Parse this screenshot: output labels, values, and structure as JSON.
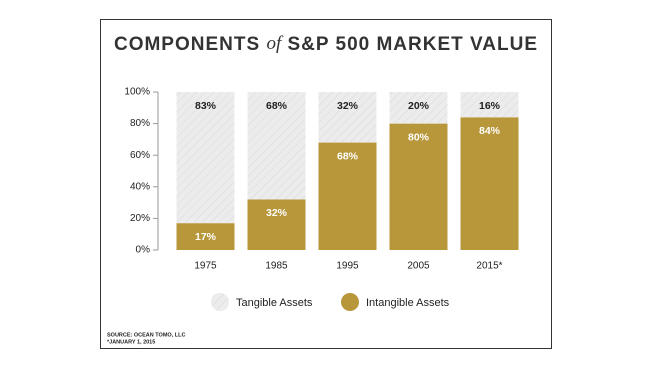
{
  "chart_data": {
    "type": "stacked-bar",
    "title": [
      "COMPONENTS",
      "of",
      "S&P 500 MARKET VALUE"
    ],
    "categories": [
      "1975",
      "1985",
      "1995",
      "2005",
      "2015*"
    ],
    "series": [
      {
        "name": "Intangible Assets",
        "color": "#b8963a",
        "values": [
          17,
          32,
          68,
          80,
          84
        ],
        "value_labels": [
          "17%",
          "32%",
          "68%",
          "80%",
          "84%"
        ]
      },
      {
        "name": "Tangible Assets",
        "color": "#ececec",
        "values": [
          83,
          68,
          32,
          20,
          16
        ],
        "value_labels": [
          "83%",
          "68%",
          "32%",
          "20%",
          "16%"
        ]
      }
    ],
    "ylim": [
      0,
      100
    ],
    "yticks": [
      {
        "value": 0,
        "label": "0%"
      },
      {
        "value": 20,
        "label": "20%"
      },
      {
        "value": 40,
        "label": "40%"
      },
      {
        "value": 60,
        "label": "60%"
      },
      {
        "value": 80,
        "label": "80%"
      },
      {
        "value": 100,
        "label": "100%"
      }
    ],
    "legend_order": [
      "Tangible Assets",
      "Intangible Assets"
    ],
    "source": "SOURCE: OCEAN TOMO, LLC",
    "footnote": "*JANUARY 1, 2015"
  }
}
